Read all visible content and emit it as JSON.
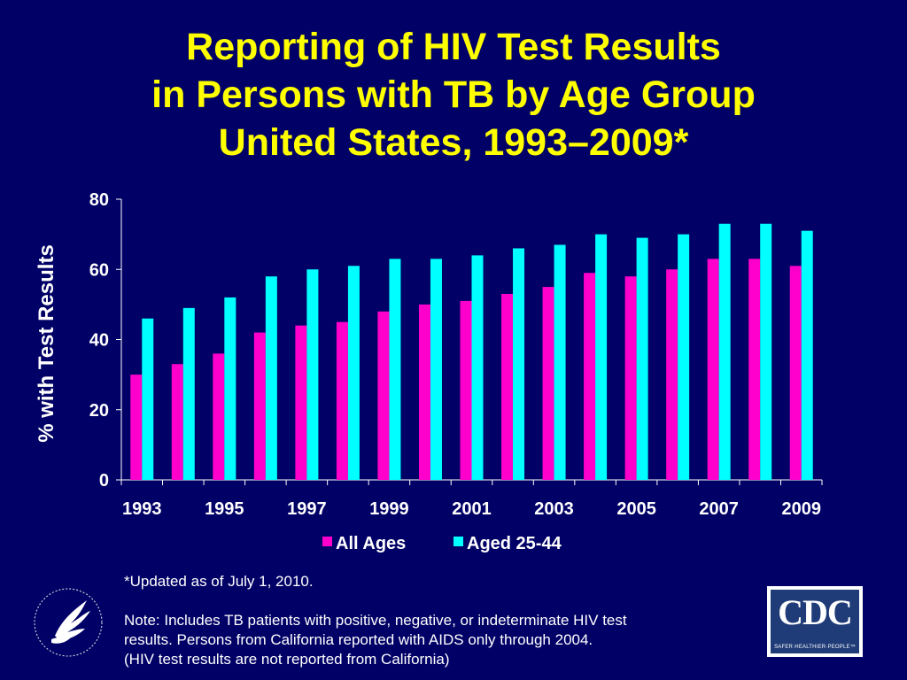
{
  "title_lines": [
    "Reporting of HIV Test Results",
    "in Persons with TB by Age Group",
    "United States, 1993–2009*"
  ],
  "footnote": {
    "updated": "*Updated as of  July 1, 2010.",
    "note_lines": [
      "Note:  Includes TB patients with positive, negative, or indeterminate HIV test",
      "results. Persons from California reported with AIDS only through 2004.",
      "(HIV test results are not reported from California)"
    ]
  },
  "logos": {
    "cdc_letters": "CDC",
    "cdc_tagline": "SAFER·HEALTHIER·PEOPLE™"
  },
  "colors": {
    "background": "#000066",
    "title": "#ffff00",
    "all_ages": "#ff00cc",
    "aged_25_44": "#00ffff",
    "text": "#ffffff"
  },
  "chart_data": {
    "type": "bar",
    "ylabel": "% with Test Results",
    "xlabel": "",
    "ylim": [
      0,
      80
    ],
    "yticks": [
      0,
      20,
      40,
      60,
      80
    ],
    "categories": [
      "1993",
      "1994",
      "1995",
      "1996",
      "1997",
      "1998",
      "1999",
      "2000",
      "2001",
      "2002",
      "2003",
      "2004",
      "2005",
      "2006",
      "2007",
      "2008",
      "2009"
    ],
    "x_tick_labels": [
      "1993",
      "1995",
      "1997",
      "1999",
      "2001",
      "2003",
      "2005",
      "2007",
      "2009"
    ],
    "legend_position": "bottom",
    "grid": false,
    "series": [
      {
        "name": "All Ages",
        "color": "#ff00cc",
        "values": [
          30,
          33,
          36,
          42,
          44,
          45,
          48,
          50,
          51,
          53,
          55,
          59,
          58,
          60,
          63,
          63,
          61
        ]
      },
      {
        "name": "Aged 25-44",
        "color": "#00ffff",
        "values": [
          46,
          49,
          52,
          58,
          60,
          61,
          63,
          63,
          64,
          66,
          67,
          70,
          69,
          70,
          73,
          73,
          71
        ]
      }
    ]
  }
}
